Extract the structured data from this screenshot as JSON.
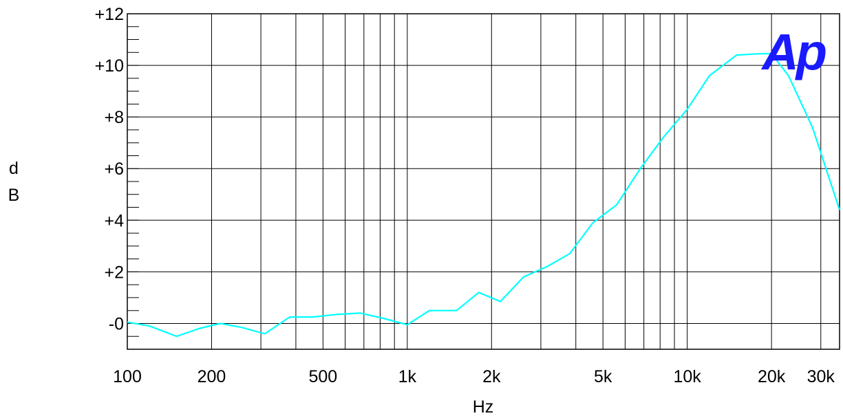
{
  "chart_data": {
    "type": "line",
    "xlabel": "Hz",
    "ylabel": [
      "d",
      "B"
    ],
    "x_scale": "log",
    "xlim": [
      100,
      35000
    ],
    "ylim": [
      -1,
      12
    ],
    "grid": true,
    "x_ticks": [
      {
        "value": 100,
        "label": "100"
      },
      {
        "value": 200,
        "label": "200"
      },
      {
        "value": 500,
        "label": "500"
      },
      {
        "value": 1000,
        "label": "1k"
      },
      {
        "value": 2000,
        "label": "2k"
      },
      {
        "value": 5000,
        "label": "5k"
      },
      {
        "value": 10000,
        "label": "10k"
      },
      {
        "value": 20000,
        "label": "20k"
      },
      {
        "value": 30000,
        "label": "30k"
      }
    ],
    "y_ticks": [
      {
        "value": 12,
        "label": "+12"
      },
      {
        "value": 10,
        "label": "+10"
      },
      {
        "value": 8,
        "label": "+8"
      },
      {
        "value": 6,
        "label": "+6"
      },
      {
        "value": 4,
        "label": "+4"
      },
      {
        "value": 2,
        "label": "+2"
      },
      {
        "value": 0,
        "label": "-0"
      }
    ],
    "series": [
      {
        "color": "#00ffff",
        "x": [
          100,
          120,
          150,
          180,
          215,
          255,
          310,
          380,
          460,
          560,
          680,
          820,
          1000,
          1200,
          1500,
          1800,
          2150,
          2600,
          3150,
          3800,
          4600,
          5600,
          6800,
          8200,
          10000,
          12000,
          15000,
          18000,
          20000,
          23000,
          28000,
          35000
        ],
        "y": [
          0.05,
          -0.1,
          -0.5,
          -0.2,
          0.0,
          -0.15,
          -0.4,
          0.25,
          0.25,
          0.35,
          0.4,
          0.2,
          -0.05,
          0.5,
          0.5,
          1.2,
          0.85,
          1.8,
          2.2,
          2.7,
          3.9,
          4.6,
          6.0,
          7.2,
          8.3,
          9.6,
          10.4,
          10.45,
          10.45,
          9.6,
          7.6,
          4.4
        ]
      }
    ],
    "logo": "Ap"
  }
}
